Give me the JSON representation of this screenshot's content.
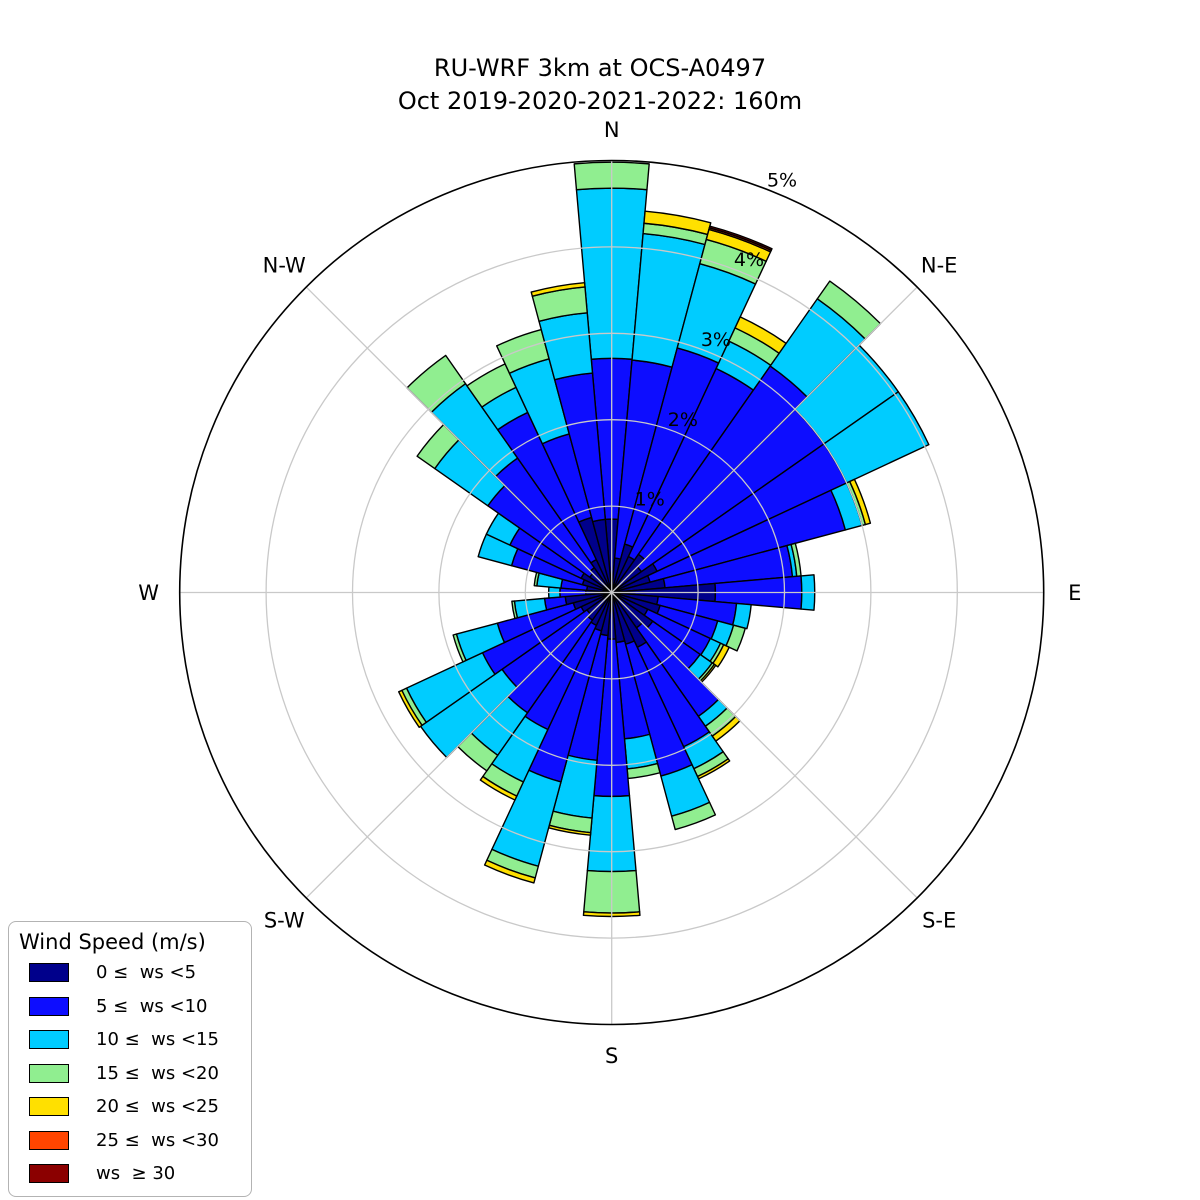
{
  "title": {
    "line1": "RU-WRF 3km at OCS-A0497",
    "line2": "Oct 2019-2020-2021-2022: 160m"
  },
  "legend": {
    "title": "Wind Speed (m/s)"
  },
  "chart_data": {
    "type": "windrose-polar-stacked-bar",
    "title": "RU-WRF 3km at OCS-A0497 — Oct 2019-2020-2021-2022: 160m",
    "units": "% frequency",
    "sector_width_deg": 10,
    "grid": "on",
    "r_axis": {
      "max": 5,
      "ticks": [
        1,
        2,
        3,
        4,
        5
      ],
      "tick_labels": [
        "1%",
        "2%",
        "3%",
        "4%",
        "5%"
      ],
      "label_azimuth_deg": 22.5
    },
    "compass_labels": [
      {
        "label": "N",
        "deg": 0
      },
      {
        "label": "N-E",
        "deg": 45
      },
      {
        "label": "E",
        "deg": 90
      },
      {
        "label": "S-E",
        "deg": 135
      },
      {
        "label": "S",
        "deg": 180
      },
      {
        "label": "S-W",
        "deg": 225
      },
      {
        "label": "W",
        "deg": 270
      },
      {
        "label": "N-W",
        "deg": 315
      }
    ],
    "speed_bins": [
      {
        "label": "0 ≤  ws <5",
        "range_ms": [
          0,
          5
        ],
        "color": "#00008B"
      },
      {
        "label": "5 ≤  ws <10",
        "range_ms": [
          5,
          10
        ],
        "color": "#0D0DFF"
      },
      {
        "label": "10 ≤  ws <15",
        "range_ms": [
          10,
          15
        ],
        "color": "#00CCFF"
      },
      {
        "label": "15 ≤  ws <20",
        "range_ms": [
          15,
          20
        ],
        "color": "#90EE90"
      },
      {
        "label": "20 ≤  ws <25",
        "range_ms": [
          20,
          25
        ],
        "color": "#FFE000"
      },
      {
        "label": "25 ≤  ws <30",
        "range_ms": [
          25,
          30
        ],
        "color": "#FF4500"
      },
      {
        "label": "ws  ≥ 30",
        "range_ms": [
          30,
          null
        ],
        "color": "#8B0000"
      }
    ],
    "bars_note": "cum_pct = cumulative stacked radius (%) after each speed bin, order matches speed_bins",
    "bars": [
      {
        "dir_deg": 0,
        "cum_pct": [
          0.85,
          2.71,
          4.68,
          4.98,
          4.98,
          4.98,
          4.98
        ]
      },
      {
        "dir_deg": 10,
        "cum_pct": [
          0.4,
          2.7,
          4.17,
          4.29,
          4.43,
          4.43,
          4.43
        ]
      },
      {
        "dir_deg": 20,
        "cum_pct": [
          0.58,
          2.93,
          3.94,
          4.23,
          4.35,
          4.37,
          4.39
        ]
      },
      {
        "dir_deg": 30,
        "cum_pct": [
          0.46,
          2.86,
          3.21,
          3.38,
          3.52,
          3.52,
          3.52
        ]
      },
      {
        "dir_deg": 40,
        "cum_pct": [
          0.54,
          3.2,
          4.15,
          4.4,
          4.4,
          4.4,
          4.4
        ]
      },
      {
        "dir_deg": 50,
        "cum_pct": [
          0.42,
          3.0,
          4.05,
          4.05,
          4.05,
          4.05,
          4.05
        ]
      },
      {
        "dir_deg": 60,
        "cum_pct": [
          0.58,
          3.0,
          4.05,
          4.05,
          4.05,
          4.05,
          4.05
        ]
      },
      {
        "dir_deg": 70,
        "cum_pct": [
          0.46,
          2.8,
          3.0,
          3.04,
          3.1,
          3.1,
          3.1
        ]
      },
      {
        "dir_deg": 80,
        "cum_pct": [
          0.62,
          2.1,
          2.15,
          2.2,
          2.2,
          2.2,
          2.2
        ]
      },
      {
        "dir_deg": 90,
        "cum_pct": [
          1.2,
          2.2,
          2.35,
          2.35,
          2.35,
          2.35,
          2.35
        ]
      },
      {
        "dir_deg": 100,
        "cum_pct": [
          0.54,
          1.45,
          1.62,
          1.62,
          1.62,
          1.62,
          1.62
        ]
      },
      {
        "dir_deg": 110,
        "cum_pct": [
          0.58,
          1.27,
          1.46,
          1.6,
          1.6,
          1.6,
          1.6
        ]
      },
      {
        "dir_deg": 120,
        "cum_pct": [
          0.46,
          1.26,
          1.39,
          1.43,
          1.5,
          1.5,
          1.5
        ]
      },
      {
        "dir_deg": 130,
        "cum_pct": [
          0.58,
          1.25,
          1.42,
          1.45,
          1.47,
          1.47,
          1.47
        ]
      },
      {
        "dir_deg": 140,
        "cum_pct": [
          0.5,
          1.75,
          1.89,
          2.03,
          2.1,
          2.1,
          2.1
        ]
      },
      {
        "dir_deg": 150,
        "cum_pct": [
          0.7,
          1.97,
          2.25,
          2.35,
          2.38,
          2.38,
          2.38
        ]
      },
      {
        "dir_deg": 160,
        "cum_pct": [
          0.62,
          2.2,
          2.68,
          2.84,
          2.84,
          2.84,
          2.84
        ]
      },
      {
        "dir_deg": 170,
        "cum_pct": [
          0.58,
          1.7,
          2.05,
          2.16,
          2.16,
          2.16,
          2.16
        ]
      },
      {
        "dir_deg": 180,
        "cum_pct": [
          0.54,
          2.36,
          3.23,
          3.71,
          3.75,
          3.75,
          3.75
        ]
      },
      {
        "dir_deg": 190,
        "cum_pct": [
          0.5,
          1.95,
          2.62,
          2.79,
          2.82,
          2.82,
          2.82
        ]
      },
      {
        "dir_deg": 200,
        "cum_pct": [
          0.46,
          2.27,
          3.28,
          3.42,
          3.48,
          3.48,
          3.48
        ]
      },
      {
        "dir_deg": 210,
        "cum_pct": [
          0.42,
          1.75,
          2.42,
          2.6,
          2.65,
          2.65,
          2.65
        ]
      },
      {
        "dir_deg": 220,
        "cum_pct": [
          0.39,
          1.7,
          2.3,
          2.52,
          2.52,
          2.52,
          2.52
        ]
      },
      {
        "dir_deg": 230,
        "cum_pct": [
          0.35,
          1.55,
          2.7,
          2.7,
          2.7,
          2.7,
          2.7
        ]
      },
      {
        "dir_deg": 240,
        "cum_pct": [
          0.39,
          1.65,
          2.62,
          2.68,
          2.72,
          2.72,
          2.72
        ]
      },
      {
        "dir_deg": 250,
        "cum_pct": [
          0.46,
          1.37,
          1.86,
          1.9,
          1.9,
          1.9,
          1.9
        ]
      },
      {
        "dir_deg": 260,
        "cum_pct": [
          0.54,
          0.78,
          1.13,
          1.16,
          1.16,
          1.16,
          1.16
        ]
      },
      {
        "dir_deg": 270,
        "cum_pct": [
          0.3,
          0.6,
          0.73,
          0.73,
          0.73,
          0.73,
          0.73
        ]
      },
      {
        "dir_deg": 280,
        "cum_pct": [
          0.29,
          0.59,
          0.87,
          0.9,
          0.9,
          0.9,
          0.9
        ]
      },
      {
        "dir_deg": 290,
        "cum_pct": [
          0.35,
          1.2,
          1.6,
          1.6,
          1.6,
          1.6,
          1.6
        ]
      },
      {
        "dir_deg": 300,
        "cum_pct": [
          0.39,
          1.3,
          1.6,
          1.6,
          1.6,
          1.6,
          1.6
        ]
      },
      {
        "dir_deg": 310,
        "cum_pct": [
          0.31,
          1.75,
          2.5,
          2.75,
          2.75,
          2.75,
          2.75
        ]
      },
      {
        "dir_deg": 320,
        "cum_pct": [
          0.35,
          1.9,
          2.95,
          3.35,
          3.35,
          3.35,
          3.35
        ]
      },
      {
        "dir_deg": 330,
        "cum_pct": [
          0.42,
          2.3,
          2.62,
          2.92,
          2.92,
          2.92,
          2.92
        ]
      },
      {
        "dir_deg": 340,
        "cum_pct": [
          0.9,
          1.9,
          2.8,
          3.15,
          3.15,
          3.15,
          3.15
        ]
      },
      {
        "dir_deg": 350,
        "cum_pct": [
          0.85,
          2.55,
          3.25,
          3.55,
          3.6,
          3.6,
          3.6
        ]
      }
    ],
    "colors": {
      "grid": "#c9c9c9",
      "outer_circle": "#000000",
      "bar_edge": "#000000",
      "text": "#000000"
    }
  }
}
